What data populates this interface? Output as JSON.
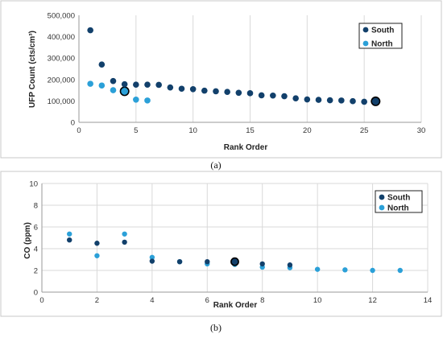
{
  "chart_data": [
    {
      "type": "scatter",
      "caption": "(a)",
      "xlabel": "Rank Order",
      "ylabel": "UFP Count  (cts/cm³)",
      "xlim": [
        0,
        30
      ],
      "ylim": [
        0,
        500000
      ],
      "xticks": [
        "0",
        "5",
        "10",
        "15",
        "20",
        "25",
        "30"
      ],
      "yticks": [
        "0",
        "100,000",
        "200,000",
        "300,000",
        "400,000",
        "500,000"
      ],
      "grid": "vertical",
      "legend_position": "top-right",
      "colors": {
        "South": "#12406b",
        "North": "#2ba0d8"
      },
      "series": [
        {
          "name": "South",
          "x": [
            1,
            2,
            3,
            4,
            5,
            6,
            7,
            8,
            9,
            10,
            11,
            12,
            13,
            14,
            15,
            16,
            17,
            18,
            19,
            20,
            21,
            22,
            23,
            24,
            25,
            26
          ],
          "y": [
            430000,
            270000,
            193000,
            178000,
            176000,
            176000,
            175000,
            163000,
            157000,
            155000,
            148000,
            145000,
            142000,
            138000,
            136000,
            126000,
            125000,
            122000,
            112000,
            107000,
            105000,
            103000,
            102000,
            99000,
            96000,
            98000
          ]
        },
        {
          "name": "North",
          "x": [
            1,
            2,
            3,
            4,
            5,
            6
          ],
          "y": [
            180000,
            172000,
            150000,
            145000,
            106000,
            102000
          ]
        }
      ],
      "highlighted_points": [
        {
          "series": "North",
          "x": 4,
          "y": 145000
        },
        {
          "series": "South",
          "x": 26,
          "y": 98000
        }
      ]
    },
    {
      "type": "scatter",
      "caption": "(b)",
      "xlabel": "Rank Order",
      "ylabel": "CO (ppm)",
      "xlim": [
        0,
        14
      ],
      "ylim": [
        0,
        10
      ],
      "xticks": [
        "0",
        "2",
        "4",
        "6",
        "8",
        "10",
        "12",
        "14"
      ],
      "yticks": [
        "0",
        "2",
        "4",
        "6",
        "8",
        "10"
      ],
      "grid": "both",
      "legend_position": "top-right",
      "colors": {
        "South": "#12406b",
        "North": "#2ba0d8"
      },
      "series": [
        {
          "name": "South",
          "x": [
            1,
            2,
            3,
            4,
            5,
            6,
            7,
            8,
            9
          ],
          "y": [
            4.8,
            4.5,
            4.6,
            2.85,
            2.8,
            2.8,
            2.8,
            2.6,
            2.5
          ]
        },
        {
          "name": "North",
          "x": [
            1,
            2,
            3,
            4,
            5,
            6,
            7,
            8,
            9,
            10,
            11,
            12,
            13
          ],
          "y": [
            5.35,
            3.35,
            5.35,
            3.2,
            2.8,
            2.6,
            2.55,
            2.3,
            2.25,
            2.1,
            2.05,
            2.0,
            2.0
          ]
        }
      ],
      "highlighted_points": [
        {
          "series": "South",
          "x": 7,
          "y": 2.8
        }
      ]
    }
  ]
}
